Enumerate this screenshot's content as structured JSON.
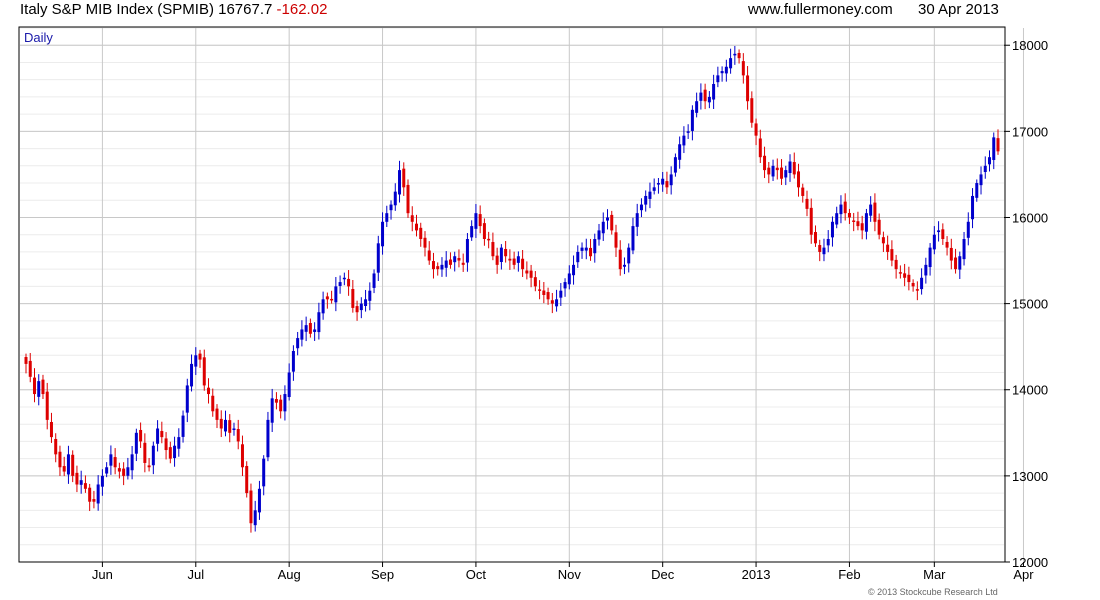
{
  "header": {
    "instrument": "Italy S&P MIB Index (SPMIB)",
    "last": "16767.7",
    "change": "-162.02",
    "site": "www.fullermoney.com",
    "date": "30 Apr 2013"
  },
  "chart_data": {
    "type": "candlestick",
    "period_label": "Daily",
    "copyright": "© 2013 Stockcube Research Ltd",
    "ylim": [
      12000,
      18200
    ],
    "y_ticks": [
      "12000",
      "13000",
      "14000",
      "15000",
      "16000",
      "17000",
      "18000"
    ],
    "x_labels": [
      "Jun",
      "Jul",
      "Aug",
      "Sep",
      "Oct",
      "Nov",
      "Dec",
      "2013",
      "Feb",
      "Mar",
      "Apr"
    ],
    "x_label_index": [
      18,
      40,
      62,
      84,
      106,
      128,
      150,
      172,
      194,
      214,
      235
    ],
    "colors": {
      "up": "#0000cc",
      "down": "#dd0000",
      "grid": "#c8c8c8",
      "minor_grid": "#ececec"
    },
    "grid": true,
    "closes": [
      14300,
      14150,
      13950,
      14100,
      13950,
      13650,
      13450,
      13250,
      13100,
      13050,
      13250,
      13000,
      12900,
      12950,
      12850,
      12700,
      12700,
      12900,
      13000,
      13100,
      13250,
      13100,
      13050,
      13000,
      13100,
      13250,
      13500,
      13400,
      13150,
      13100,
      13350,
      13550,
      13450,
      13300,
      13200,
      13350,
      13450,
      13700,
      14050,
      14300,
      14400,
      14350,
      14050,
      13950,
      13750,
      13650,
      13550,
      13650,
      13500,
      13550,
      13400,
      13100,
      12800,
      12450,
      12600,
      12850,
      13200,
      13650,
      13900,
      13850,
      13750,
      13950,
      14200,
      14450,
      14600,
      14700,
      14750,
      14650,
      14700,
      14900,
      15050,
      15050,
      15050,
      15200,
      15250,
      15300,
      15200,
      14950,
      14900,
      15000,
      15050,
      15150,
      15350,
      15700,
      15950,
      16050,
      16150,
      16300,
      16550,
      16350,
      16050,
      15950,
      15850,
      15750,
      15650,
      15500,
      15400,
      15400,
      15450,
      15500,
      15450,
      15550,
      15500,
      15450,
      15750,
      15900,
      16050,
      15900,
      15750,
      15750,
      15550,
      15450,
      15650,
      15550,
      15500,
      15450,
      15550,
      15400,
      15350,
      15300,
      15200,
      15150,
      15100,
      15050,
      15000,
      15050,
      15150,
      15250,
      15350,
      15450,
      15600,
      15650,
      15650,
      15550,
      15750,
      15850,
      15950,
      16000,
      15850,
      15650,
      15400,
      15450,
      15650,
      15900,
      16050,
      16150,
      16250,
      16300,
      16350,
      16400,
      16450,
      16350,
      16500,
      16700,
      16850,
      16950,
      17000,
      17250,
      17350,
      17450,
      17350,
      17400,
      17550,
      17650,
      17700,
      17750,
      17850,
      17900,
      17850,
      17650,
      17350,
      17100,
      16950,
      16700,
      16550,
      16500,
      16600,
      16550,
      16450,
      16550,
      16650,
      16500,
      16350,
      16250,
      16100,
      15800,
      15700,
      15600,
      15650,
      15750,
      15950,
      16050,
      16150,
      16050,
      16000,
      15950,
      15900,
      15850,
      16050,
      16150,
      15950,
      15800,
      15700,
      15600,
      15500,
      15400,
      15350,
      15300,
      15250,
      15200,
      15150,
      15300,
      15450,
      15650,
      15800,
      15850,
      15750,
      15650,
      15500,
      15400,
      15550,
      15750,
      15950,
      16250,
      16400,
      16500,
      16600,
      16700,
      16930,
      16768
    ]
  }
}
